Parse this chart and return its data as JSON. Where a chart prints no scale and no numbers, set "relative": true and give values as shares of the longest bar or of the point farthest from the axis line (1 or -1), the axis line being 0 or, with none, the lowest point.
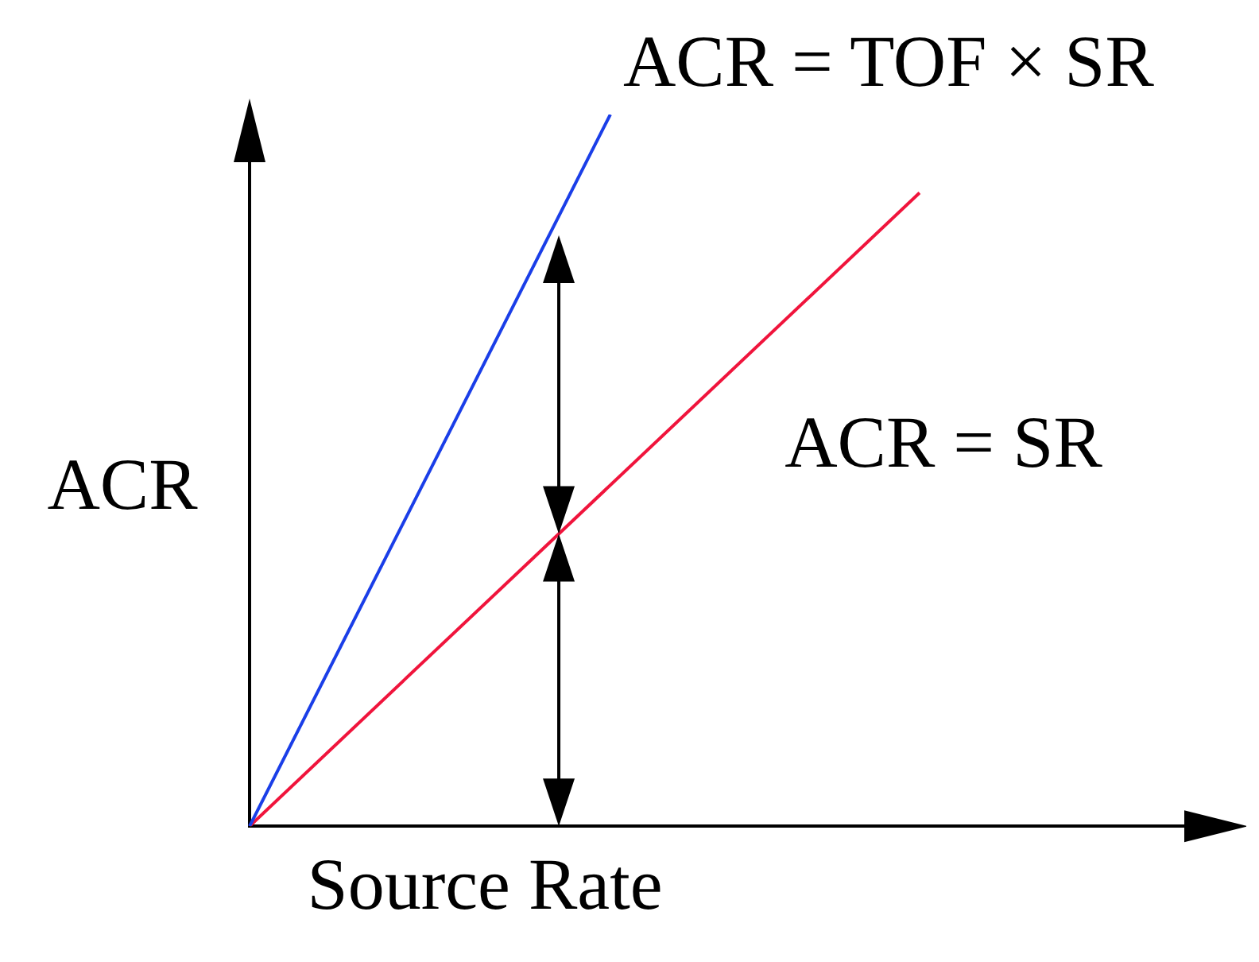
{
  "chart_data": {
    "type": "line",
    "relative": true,
    "xlabel": "Source Rate",
    "ylabel": "ACR",
    "grid": false,
    "legend": false,
    "marker": "none",
    "line_style": "solid",
    "categories": [
      null,
      null,
      null,
      null,
      null,
      null,
      null,
      null,
      null,
      null,
      null,
      null,
      null,
      null,
      null,
      null,
      null,
      null,
      null,
      null
    ],
    "series": [
      {
        "name": "ACR = TOF × SR",
        "color": "#1a3ee8",
        "values": [
          0,
          null,
          null,
          null,
          null,
          null,
          null,
          1,
          null,
          null,
          null,
          null,
          null,
          null,
          null,
          null,
          null,
          null,
          null,
          null
        ]
      },
      {
        "name": "ACR = SR",
        "color": "#f0143c",
        "values": [
          0,
          null,
          null,
          null,
          null,
          null,
          null,
          null,
          null,
          null,
          null,
          null,
          null,
          0.89,
          null,
          null,
          null,
          null,
          null,
          null
        ]
      }
    ]
  }
}
